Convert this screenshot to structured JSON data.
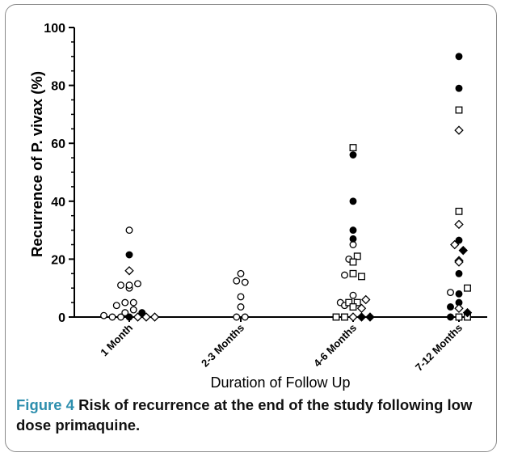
{
  "chart_data": {
    "type": "scatter",
    "title": "",
    "xlabel": "Duration of Follow Up",
    "ylabel": "Recurrence of P. vivax (%)",
    "ylim": [
      0,
      100
    ],
    "yticks": [
      0,
      20,
      40,
      60,
      80,
      100
    ],
    "categories": [
      "1 Month",
      "2-3 Months",
      "4-6 Months",
      "7-12 Months"
    ],
    "grid": false,
    "legend": "none",
    "series": [
      {
        "marker": "open-circle",
        "points": [
          {
            "x": "1 Month",
            "y": 30
          },
          {
            "x": "1 Month",
            "y": 11
          },
          {
            "x": "1 Month",
            "y": 10
          },
          {
            "x": "1 Month",
            "y": 11
          },
          {
            "x": "1 Month",
            "y": 11.5
          },
          {
            "x": "1 Month",
            "y": 5
          },
          {
            "x": "1 Month",
            "y": 4
          },
          {
            "x": "1 Month",
            "y": 5
          },
          {
            "x": "1 Month",
            "y": 1.5
          },
          {
            "x": "1 Month",
            "y": 0.5
          },
          {
            "x": "1 Month",
            "y": 0
          },
          {
            "x": "1 Month",
            "y": 0
          },
          {
            "x": "1 Month",
            "y": 2.5
          },
          {
            "x": "2-3 Months",
            "y": 15
          },
          {
            "x": "2-3 Months",
            "y": 12.5
          },
          {
            "x": "2-3 Months",
            "y": 12
          },
          {
            "x": "2-3 Months",
            "y": 7
          },
          {
            "x": "2-3 Months",
            "y": 3.5
          },
          {
            "x": "2-3 Months",
            "y": 0
          },
          {
            "x": "2-3 Months",
            "y": 0
          },
          {
            "x": "4-6 Months",
            "y": 25
          },
          {
            "x": "4-6 Months",
            "y": 20
          },
          {
            "x": "4-6 Months",
            "y": 14.5
          },
          {
            "x": "4-6 Months",
            "y": 7.5
          },
          {
            "x": "4-6 Months",
            "y": 5
          },
          {
            "x": "4-6 Months",
            "y": 4
          },
          {
            "x": "7-12 Months",
            "y": 8.5
          }
        ]
      },
      {
        "marker": "filled-circle",
        "points": [
          {
            "x": "1 Month",
            "y": 21.5
          },
          {
            "x": "1 Month",
            "y": 0
          },
          {
            "x": "1 Month",
            "y": 1.5
          },
          {
            "x": "4-6 Months",
            "y": 56
          },
          {
            "x": "4-6 Months",
            "y": 40
          },
          {
            "x": "4-6 Months",
            "y": 30
          },
          {
            "x": "4-6 Months",
            "y": 27
          },
          {
            "x": "7-12 Months",
            "y": 90
          },
          {
            "x": "7-12 Months",
            "y": 79
          },
          {
            "x": "7-12 Months",
            "y": 26.5
          },
          {
            "x": "7-12 Months",
            "y": 15
          },
          {
            "x": "7-12 Months",
            "y": 8
          },
          {
            "x": "7-12 Months",
            "y": 5
          },
          {
            "x": "7-12 Months",
            "y": 3.5
          },
          {
            "x": "7-12 Months",
            "y": 0
          }
        ]
      },
      {
        "marker": "open-square",
        "points": [
          {
            "x": "4-6 Months",
            "y": 58.5
          },
          {
            "x": "4-6 Months",
            "y": 21
          },
          {
            "x": "4-6 Months",
            "y": 19
          },
          {
            "x": "4-6 Months",
            "y": 15
          },
          {
            "x": "4-6 Months",
            "y": 14
          },
          {
            "x": "4-6 Months",
            "y": 5
          },
          {
            "x": "4-6 Months",
            "y": 5
          },
          {
            "x": "4-6 Months",
            "y": 3.5
          },
          {
            "x": "4-6 Months",
            "y": 0
          },
          {
            "x": "4-6 Months",
            "y": 0
          },
          {
            "x": "7-12 Months",
            "y": 71.5
          },
          {
            "x": "7-12 Months",
            "y": 36.5
          },
          {
            "x": "7-12 Months",
            "y": 10
          },
          {
            "x": "7-12 Months",
            "y": 0
          },
          {
            "x": "7-12 Months",
            "y": 0
          }
        ]
      },
      {
        "marker": "open-diamond",
        "points": [
          {
            "x": "1 Month",
            "y": 16
          },
          {
            "x": "1 Month",
            "y": 0
          },
          {
            "x": "1 Month",
            "y": 0
          },
          {
            "x": "1 Month",
            "y": 0
          },
          {
            "x": "4-6 Months",
            "y": 6
          },
          {
            "x": "4-6 Months",
            "y": 3
          },
          {
            "x": "4-6 Months",
            "y": 0
          },
          {
            "x": "7-12 Months",
            "y": 64.5
          },
          {
            "x": "7-12 Months",
            "y": 32
          },
          {
            "x": "7-12 Months",
            "y": 25
          },
          {
            "x": "7-12 Months",
            "y": 19.5
          },
          {
            "x": "7-12 Months",
            "y": 19
          },
          {
            "x": "7-12 Months",
            "y": 3
          }
        ]
      },
      {
        "marker": "filled-diamond",
        "points": [
          {
            "x": "4-6 Months",
            "y": 0
          },
          {
            "x": "4-6 Months",
            "y": 0
          },
          {
            "x": "7-12 Months",
            "y": 23
          },
          {
            "x": "7-12 Months",
            "y": 1.5
          }
        ]
      }
    ]
  },
  "caption": {
    "label": "Figure 4",
    "text": "Risk of recurrence at the end of the study following low dose primaquine."
  }
}
